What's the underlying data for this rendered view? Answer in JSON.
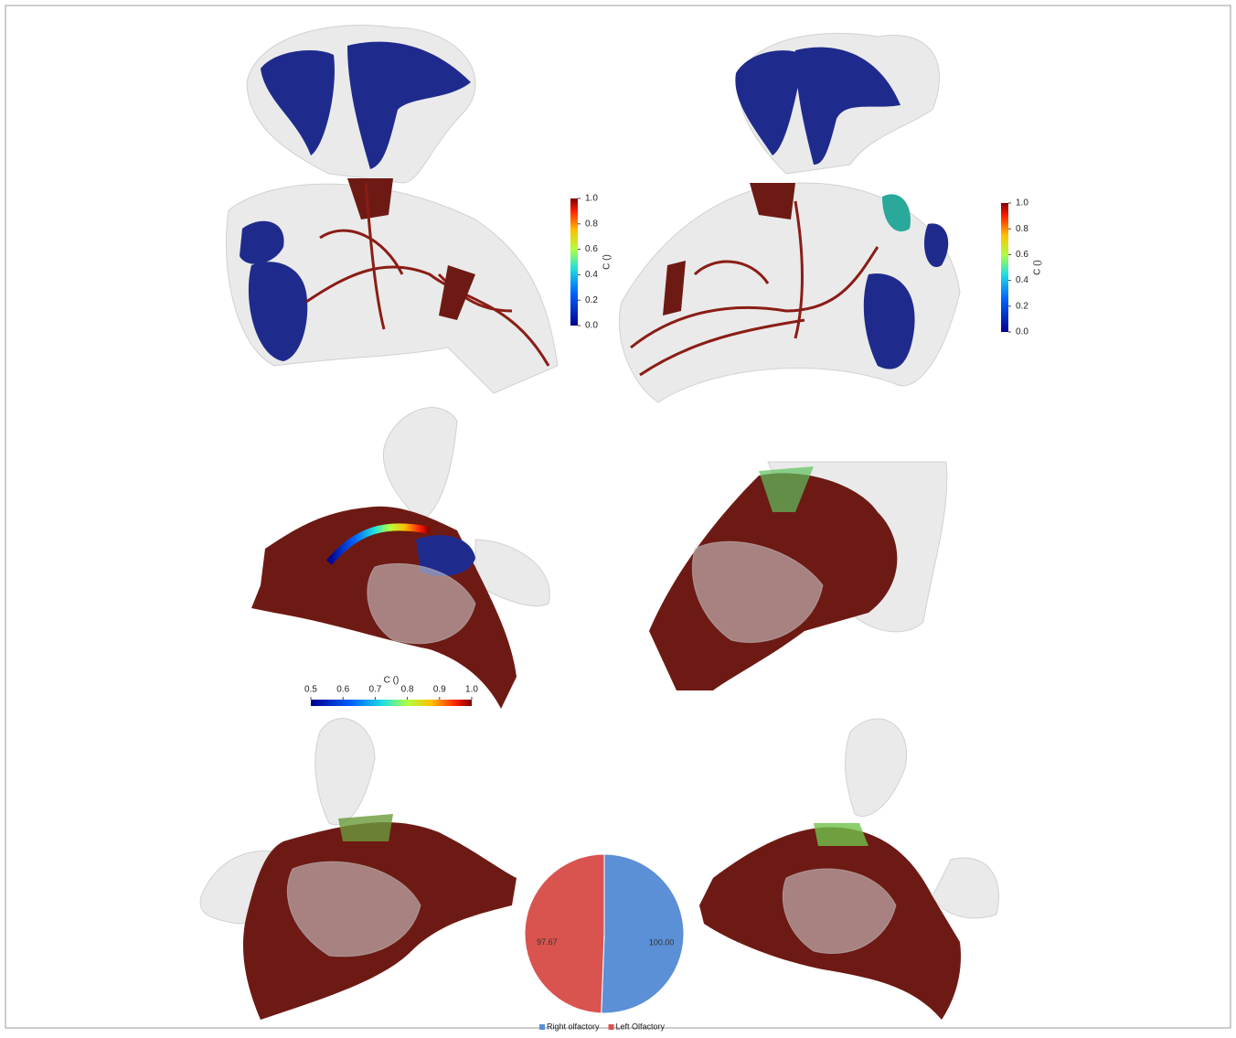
{
  "colorbars": [
    {
      "title": "C ()",
      "lim": [
        0,
        1
      ],
      "ticks": [
        {
          "value": 0,
          "label": "0.0"
        },
        0.2,
        0.4,
        0.6,
        0.8,
        {
          "value": 1,
          "label": "1.0"
        }
      ]
    },
    {
      "title": "C ()",
      "lim": [
        0,
        1
      ],
      "ticks": [
        {
          "value": 0,
          "label": "0.0"
        },
        0.2,
        0.4,
        0.6,
        0.8,
        {
          "value": 1,
          "label": "1.0"
        }
      ]
    },
    {
      "title": "C ()",
      "lim": [
        0.5,
        1
      ],
      "ticks": [
        0.5,
        0.6,
        0.7,
        0.8,
        0.9,
        {
          "value": 1,
          "label": "1.0"
        }
      ]
    }
  ],
  "chart_data": {
    "type": "pie",
    "categories": [
      "Right olfactory",
      "Left Olfactory"
    ],
    "values": [
      100,
      97.67
    ],
    "value_labels": [
      "100.00",
      "97.67"
    ],
    "colors": [
      "#5b8fd6",
      "#d9534f"
    ]
  }
}
